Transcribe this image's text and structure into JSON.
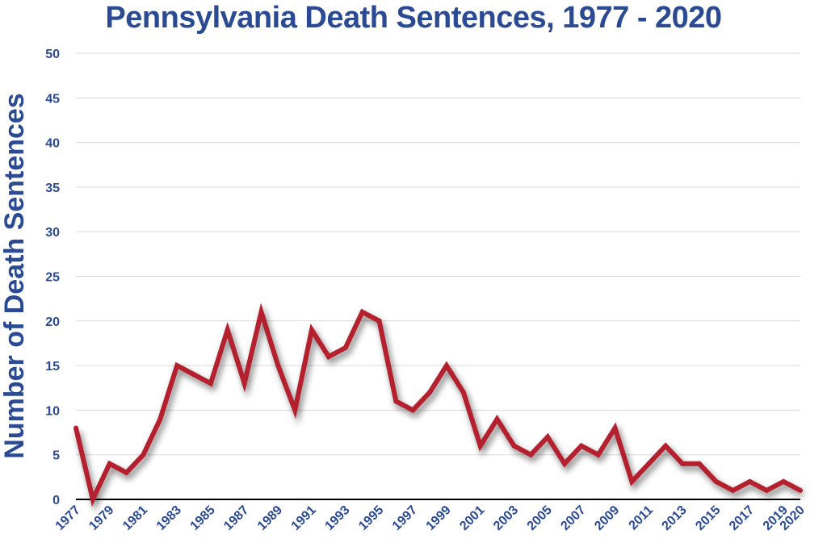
{
  "colors": {
    "title": "#2b4a94",
    "axis_text": "#2b4a94",
    "line": "#b5202e",
    "grid": "#d9d9d9",
    "axis": "#000000",
    "shadow": "#000000"
  },
  "chart_data": {
    "type": "line",
    "title": "Pennsylvania Death Sentences, 1977 - 2020",
    "xlabel": "",
    "ylabel": "Number of Death Sentences",
    "ylim": [
      0,
      50
    ],
    "yticks": [
      "0",
      "5",
      "10",
      "15",
      "20",
      "25",
      "30",
      "35",
      "40",
      "45",
      "50"
    ],
    "xticks": [
      "1977",
      "1979",
      "1981",
      "1983",
      "1985",
      "1987",
      "1989",
      "1991",
      "1993",
      "1995",
      "1997",
      "1999",
      "2001",
      "2003",
      "2005",
      "2007",
      "2009",
      "2011",
      "2013",
      "2015",
      "2017",
      "2019",
      "2020"
    ],
    "grid": true,
    "x": [
      1977,
      1978,
      1979,
      1980,
      1981,
      1982,
      1983,
      1984,
      1985,
      1986,
      1987,
      1988,
      1989,
      1990,
      1991,
      1992,
      1993,
      1994,
      1995,
      1996,
      1997,
      1998,
      1999,
      2000,
      2001,
      2002,
      2003,
      2004,
      2005,
      2006,
      2007,
      2008,
      2009,
      2010,
      2011,
      2012,
      2013,
      2014,
      2015,
      2016,
      2017,
      2018,
      2019,
      2020
    ],
    "series": [
      {
        "values": [
          8,
          0,
          4,
          3,
          5,
          9,
          15,
          14,
          13,
          19,
          13,
          21,
          15,
          10,
          19,
          16,
          17,
          21,
          20,
          11,
          10,
          12,
          15,
          12,
          6,
          9,
          6,
          5,
          7,
          4,
          6,
          5,
          8,
          2,
          4,
          6,
          4,
          4,
          2,
          1,
          2,
          1,
          2,
          1
        ]
      }
    ]
  }
}
